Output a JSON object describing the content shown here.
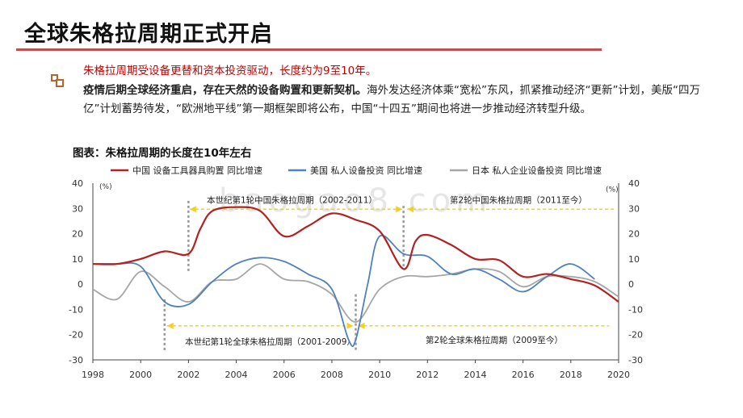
{
  "header": {
    "title": "全球朱格拉周期正式开启"
  },
  "body": {
    "line1": "朱格拉周期受设备更替和资本投资驱动，长度约为9至10年。",
    "para_bold": "疫情后期全球经济重启，存在天然的设备购置和更新契机。",
    "para_rest": "海外发达经济体乘“宽松”东风，抓紧推动经济“更新”计划，美版“四万亿”计划蓄势待发，“欧洲地平线”第一期框架即将公布，中国“十四五”期间也将进一步推动经济转型升级。"
  },
  "chart_title": "图表：朱格拉周期的长度在10年左右",
  "watermark": "baogao8.com",
  "colors": {
    "china": "#b22222",
    "us": "#4f81bd",
    "japan": "#a6a6a6",
    "accent": "#c0504d",
    "arrow": "#f2d024"
  },
  "chart_data": {
    "type": "line",
    "x_ticks": [
      "1998",
      "2000",
      "2002",
      "2004",
      "2006",
      "2008",
      "2010",
      "2012",
      "2014",
      "2016",
      "2018",
      "2020"
    ],
    "xlim": [
      1998,
      2020
    ],
    "ylim": [
      -30,
      40
    ],
    "y_ticks": [
      "40",
      "30",
      "20",
      "10",
      "0",
      "-10",
      "-20",
      "-30"
    ],
    "y_unit_left": "(%)",
    "y_unit_right": "(%)",
    "series": [
      {
        "name": "中国 设备工具器具购置 同比增速",
        "color_key": "china",
        "points": [
          [
            1998,
            8
          ],
          [
            1999,
            8
          ],
          [
            2000,
            10
          ],
          [
            2001,
            13
          ],
          [
            2002,
            12
          ],
          [
            2002.5,
            22
          ],
          [
            2003,
            29
          ],
          [
            2004,
            30.5
          ],
          [
            2005,
            29
          ],
          [
            2006,
            19
          ],
          [
            2007,
            23
          ],
          [
            2008,
            28
          ],
          [
            2009,
            25.5
          ],
          [
            2010,
            21
          ],
          [
            2011,
            6
          ],
          [
            2011.5,
            17
          ],
          [
            2012,
            19.5
          ],
          [
            2013,
            15.5
          ],
          [
            2014,
            10
          ],
          [
            2015,
            9.5
          ],
          [
            2016,
            3
          ],
          [
            2017,
            4
          ],
          [
            2018,
            2
          ],
          [
            2019,
            -0.5
          ],
          [
            2020,
            -7
          ]
        ]
      },
      {
        "name": "美国 私人设备投资 同比增速",
        "color_key": "us",
        "points": [
          [
            1998,
            8
          ],
          [
            1999,
            8
          ],
          [
            2000,
            7
          ],
          [
            2001,
            -7
          ],
          [
            2002,
            -8
          ],
          [
            2003,
            1
          ],
          [
            2004,
            8
          ],
          [
            2005,
            10.5
          ],
          [
            2006,
            9
          ],
          [
            2007,
            4
          ],
          [
            2008,
            -2
          ],
          [
            2008.7,
            -22
          ],
          [
            2009,
            -22
          ],
          [
            2009.5,
            0
          ],
          [
            2010,
            19
          ],
          [
            2011,
            12
          ],
          [
            2012,
            11
          ],
          [
            2013,
            4
          ],
          [
            2014,
            6
          ],
          [
            2015,
            2
          ],
          [
            2016,
            -3
          ],
          [
            2017,
            3
          ],
          [
            2018,
            8
          ],
          [
            2019,
            2
          ]
        ]
      },
      {
        "name": "日本 私人企业设备投资 同比增速",
        "color_key": "japan",
        "points": [
          [
            1998,
            -2
          ],
          [
            1999,
            -6
          ],
          [
            2000,
            5
          ],
          [
            2001,
            -1
          ],
          [
            2002,
            -7
          ],
          [
            2003,
            1
          ],
          [
            2004,
            2
          ],
          [
            2005,
            8
          ],
          [
            2006,
            2
          ],
          [
            2007,
            1
          ],
          [
            2008,
            -4
          ],
          [
            2009,
            -15
          ],
          [
            2010,
            -2
          ],
          [
            2011,
            3
          ],
          [
            2012,
            3
          ],
          [
            2013,
            4
          ],
          [
            2014,
            6
          ],
          [
            2015,
            5
          ],
          [
            2016,
            -1
          ],
          [
            2017,
            3
          ],
          [
            2018,
            3
          ],
          [
            2019,
            1
          ],
          [
            2020,
            -5
          ]
        ]
      }
    ],
    "annotations": {
      "china_cycle1": "本世纪第1轮中国朱格拉周期（2002-2011）",
      "china_cycle2": "第2轮中国朱格拉周期（2011至今）",
      "global_cycle1": "本世纪第1轮全球朱格拉周期（2001-2009）",
      "global_cycle2": "第2轮全球朱格拉周期（2009至今）"
    },
    "markers": {
      "china_start": 2002,
      "china_split": 2011,
      "global_start": 2001,
      "global_split": 2009
    },
    "grid": false,
    "legend_position": "top"
  }
}
